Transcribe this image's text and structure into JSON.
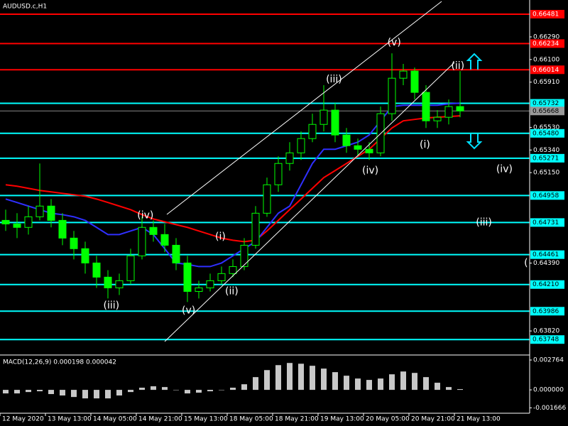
{
  "chart_data": {
    "type": "candlestick",
    "title": "AUDUSD.c,H1",
    "categories": [
      "12 May 2020",
      null,
      null,
      null,
      "13 May 13:00",
      null,
      null,
      null,
      "14 May 05:00",
      null,
      null,
      null,
      "14 May 21:00",
      null,
      null,
      null,
      "15 May 13:00",
      null,
      null,
      null,
      "18 May 05:00",
      null,
      null,
      null,
      "18 May 21:00",
      null,
      null,
      null,
      "19 May 13:00",
      null,
      null,
      null,
      "20 May 05:00",
      null,
      null,
      null,
      "20 May 21:00",
      null,
      null,
      null,
      "21 May 13:00"
    ],
    "candles": [
      [
        0.64749,
        0.64839,
        0.6466,
        0.64719
      ],
      [
        0.64719,
        0.64809,
        0.646,
        0.6469
      ],
      [
        0.6469,
        0.64869,
        0.6463,
        0.64779
      ],
      [
        0.64779,
        0.65227,
        0.64749,
        0.64869
      ],
      [
        0.64869,
        0.64928,
        0.6469,
        0.64749
      ],
      [
        0.64749,
        0.64809,
        0.6454,
        0.646
      ],
      [
        0.646,
        0.6466,
        0.64421,
        0.64511
      ],
      [
        0.64511,
        0.6457,
        0.64302,
        0.64391
      ],
      [
        0.64391,
        0.64451,
        0.64182,
        0.64272
      ],
      [
        0.64272,
        0.64331,
        0.64093,
        0.64182
      ],
      [
        0.64182,
        0.64302,
        0.64122,
        0.64242
      ],
      [
        0.64242,
        0.64511,
        0.64212,
        0.64451
      ],
      [
        0.64451,
        0.64779,
        0.64421,
        0.6469
      ],
      [
        0.6469,
        0.64749,
        0.6457,
        0.6463
      ],
      [
        0.6463,
        0.64719,
        0.64481,
        0.6454
      ],
      [
        0.6454,
        0.646,
        0.64331,
        0.64391
      ],
      [
        0.64391,
        0.64451,
        0.64063,
        0.64152
      ],
      [
        0.64152,
        0.64242,
        0.64093,
        0.64182
      ],
      [
        0.64182,
        0.64302,
        0.64152,
        0.64242
      ],
      [
        0.64242,
        0.64361,
        0.64212,
        0.64302
      ],
      [
        0.64302,
        0.64421,
        0.64272,
        0.64361
      ],
      [
        0.64361,
        0.646,
        0.64331,
        0.6454
      ],
      [
        0.6454,
        0.64869,
        0.64511,
        0.64809
      ],
      [
        0.64809,
        0.65108,
        0.64779,
        0.65048
      ],
      [
        0.65048,
        0.65287,
        0.64988,
        0.65227
      ],
      [
        0.65227,
        0.65406,
        0.65167,
        0.65316
      ],
      [
        0.65316,
        0.65496,
        0.65257,
        0.65436
      ],
      [
        0.65436,
        0.65645,
        0.65406,
        0.65555
      ],
      [
        0.65555,
        0.65884,
        0.65496,
        0.65675
      ],
      [
        0.65675,
        0.65734,
        0.65406,
        0.65466
      ],
      [
        0.65466,
        0.65525,
        0.65316,
        0.65376
      ],
      [
        0.65376,
        0.65436,
        0.65287,
        0.65346
      ],
      [
        0.65346,
        0.65406,
        0.65257,
        0.65316
      ],
      [
        0.65316,
        0.65705,
        0.65287,
        0.65645
      ],
      [
        0.65645,
        0.66152,
        0.65585,
        0.65943
      ],
      [
        0.65943,
        0.66063,
        0.65884,
        0.66003
      ],
      [
        0.66003,
        0.66033,
        0.65764,
        0.65824
      ],
      [
        0.65824,
        0.65884,
        0.65525,
        0.65585
      ],
      [
        0.65585,
        0.65675,
        0.65525,
        0.65615
      ],
      [
        0.65615,
        0.65764,
        0.65555,
        0.65705
      ],
      [
        0.65705,
        0.66003,
        0.65615,
        0.65668
      ]
    ],
    "up_color": "#00ff00",
    "down_color": "#00ff00",
    "lines": [
      {
        "color": "#ff0000",
        "values": [
          0.65048,
          0.65036,
          0.65018,
          0.65,
          0.64988,
          0.64976,
          0.64964,
          0.64952,
          0.64928,
          0.64899,
          0.64869,
          0.64839,
          0.64797,
          0.64761,
          0.64737,
          0.64713,
          0.6469,
          0.6466,
          0.6463,
          0.646,
          0.64582,
          0.6457,
          0.64582,
          0.6466,
          0.64749,
          0.64839,
          0.64928,
          0.65018,
          0.65108,
          0.65167,
          0.65227,
          0.65287,
          0.65346,
          0.65436,
          0.65525,
          0.65585,
          0.65597,
          0.65609,
          0.65615,
          0.65621,
          0.65627
        ]
      },
      {
        "color": "#2f2fff",
        "values": [
          0.64928,
          0.64899,
          0.64869,
          0.64839,
          0.64809,
          0.64797,
          0.64779,
          0.64749,
          0.6469,
          0.6463,
          0.6463,
          0.6466,
          0.6469,
          0.6463,
          0.64511,
          0.64391,
          0.64379,
          0.64361,
          0.64361,
          0.64391,
          0.64451,
          0.64511,
          0.6457,
          0.6469,
          0.64809,
          0.64869,
          0.65048,
          0.65227,
          0.65346,
          0.65346,
          0.65376,
          0.65406,
          0.65466,
          0.65585,
          0.65705,
          0.65716,
          0.65716,
          0.65716,
          0.65716,
          0.65728,
          0.65734
        ]
      }
    ],
    "ylim": [
      0.6363,
      0.666
    ],
    "yticks": [
      {
        "value": 0.6629,
        "label": "0.66290"
      },
      {
        "value": 0.661,
        "label": "0.66100"
      },
      {
        "value": 0.6591,
        "label": "0.65910"
      },
      {
        "value": 0.6553,
        "label": "0.65530"
      },
      {
        "value": 0.6534,
        "label": "0.65340"
      },
      {
        "value": 0.6515,
        "label": "0.65150"
      },
      {
        "value": 0.6439,
        "label": "0.64390"
      },
      {
        "value": 0.6382,
        "label": "0.63820"
      }
    ],
    "red_color": "#ff0000",
    "red_levels": [
      0.66481,
      0.66234,
      0.66014
    ],
    "cyan_color": "#00ffff",
    "cyan_levels": [
      0.65732,
      {
        "value": 0.6548,
        "label": "0.65480"
      },
      0.65271,
      0.64958,
      0.64731,
      0.64461,
      {
        "value": 0.6421,
        "label": "0.64210"
      },
      0.63986,
      0.63748
    ],
    "current_price": 0.65668,
    "wave_labels": [
      {
        "text": "(iii)",
        "bar": 9.3,
        "price": 0.64033
      },
      {
        "text": "(iv)",
        "bar": 12.3,
        "price": 0.64791
      },
      {
        "text": "(v)",
        "bar": 16.1,
        "price": 0.63991
      },
      {
        "text": "(i)",
        "bar": 18.9,
        "price": 0.64612
      },
      {
        "text": "(ii)",
        "bar": 19.9,
        "price": 0.64152
      },
      {
        "text": "(iii)",
        "bar": 28.9,
        "price": 0.65931
      },
      {
        "text": "(iv)",
        "bar": 32.1,
        "price": 0.65167
      },
      {
        "text": "(v)",
        "bar": 34.2,
        "price": 0.66242
      },
      {
        "text": "(i)",
        "bar": 36.9,
        "price": 0.65382
      },
      {
        "text": "(ii)",
        "bar": 39.8,
        "price": 0.66045
      },
      {
        "text": "(iv)",
        "bar": 43.9,
        "price": 0.65179
      },
      {
        "text": "(iii)",
        "bar": 42.1,
        "price": 0.64731
      },
      {
        "text": "(",
        "bar": 45.8,
        "price": 0.64391
      }
    ],
    "macd": {
      "title": "MACD(12,26,9) 0.000198 0.000042",
      "color": "#c8c8c8",
      "values": [
        -0.00033,
        -0.00033,
        -0.0002,
        -0.00013,
        -0.00039,
        -0.00052,
        -0.00066,
        -0.00079,
        -0.00079,
        -0.00079,
        -0.00052,
        -0.0002,
        0.0002,
        0.00033,
        0.00026,
        0,
        -0.00033,
        -0.00026,
        -0.00013,
        0,
        0.0002,
        0.00052,
        0.00118,
        0.00183,
        0.00229,
        0.00249,
        0.00242,
        0.00223,
        0.00197,
        0.00164,
        0.00131,
        0.00105,
        0.00092,
        0.00105,
        0.00144,
        0.0017,
        0.00157,
        0.00118,
        0.00066,
        0.00026,
        7e-05
      ],
      "ylim": [
        -0.0019,
        0.00303
      ],
      "yticks": [
        0.002764,
        {
          "value": 0,
          "label": "0.000000"
        },
        -0.001666
      ]
    }
  }
}
